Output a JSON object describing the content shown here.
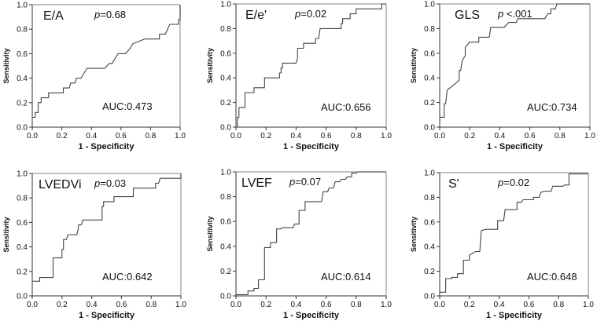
{
  "chart_data": [
    {
      "type": "line",
      "title": "E/A",
      "p_value": "p=0.68",
      "p_label": "p",
      "p_rest": "=0.68",
      "auc_label": "AUC:0.473",
      "xlabel": "1 - Specificity",
      "ylabel": "Sensitivity",
      "xlim": [
        0,
        1
      ],
      "ylim": [
        0,
        1
      ],
      "xticks": [
        "0.0",
        "0.2",
        "0.4",
        "0.6",
        "0.8",
        "1.0"
      ],
      "yticks": [
        "0.0",
        "0.2",
        "0.4",
        "0.6",
        "0.8",
        "1.0"
      ],
      "points": [
        [
          0,
          0
        ],
        [
          0,
          0.08
        ],
        [
          0.02,
          0.08
        ],
        [
          0.02,
          0.12
        ],
        [
          0.04,
          0.12
        ],
        [
          0.04,
          0.2
        ],
        [
          0.06,
          0.2
        ],
        [
          0.06,
          0.24
        ],
        [
          0.11,
          0.24
        ],
        [
          0.11,
          0.28
        ],
        [
          0.21,
          0.28
        ],
        [
          0.21,
          0.32
        ],
        [
          0.25,
          0.32
        ],
        [
          0.26,
          0.36
        ],
        [
          0.29,
          0.36
        ],
        [
          0.3,
          0.4
        ],
        [
          0.33,
          0.4
        ],
        [
          0.35,
          0.44
        ],
        [
          0.37,
          0.48
        ],
        [
          0.49,
          0.48
        ],
        [
          0.52,
          0.52
        ],
        [
          0.54,
          0.52
        ],
        [
          0.58,
          0.6
        ],
        [
          0.63,
          0.6
        ],
        [
          0.66,
          0.64
        ],
        [
          0.68,
          0.68
        ],
        [
          0.76,
          0.72
        ],
        [
          0.86,
          0.72
        ],
        [
          0.86,
          0.76
        ],
        [
          0.9,
          0.76
        ],
        [
          0.93,
          0.84
        ],
        [
          0.99,
          0.84
        ],
        [
          0.99,
          0.88
        ],
        [
          1,
          0.88
        ],
        [
          1,
          1
        ]
      ]
    },
    {
      "type": "line",
      "title": "E/e'",
      "p_value": "p=0.02",
      "p_label": "p",
      "p_rest": "=0.02",
      "auc_label": "AUC:0.656",
      "xlabel": "1 - Specificity",
      "ylabel": "Sensitivity",
      "xlim": [
        0,
        1
      ],
      "ylim": [
        0,
        1
      ],
      "xticks": [
        "0.0",
        "0.2",
        "0.4",
        "0.6",
        "0.8",
        "1.0"
      ],
      "yticks": [
        "0.0",
        "0.2",
        "0.4",
        "0.6",
        "0.8",
        "1.0"
      ],
      "points": [
        [
          0.01,
          0
        ],
        [
          0.01,
          0.08
        ],
        [
          0.02,
          0.08
        ],
        [
          0.02,
          0.16
        ],
        [
          0.06,
          0.16
        ],
        [
          0.06,
          0.28
        ],
        [
          0.12,
          0.28
        ],
        [
          0.12,
          0.32
        ],
        [
          0.19,
          0.32
        ],
        [
          0.19,
          0.4
        ],
        [
          0.29,
          0.4
        ],
        [
          0.29,
          0.44
        ],
        [
          0.3,
          0.44
        ],
        [
          0.3,
          0.48
        ],
        [
          0.31,
          0.48
        ],
        [
          0.31,
          0.52
        ],
        [
          0.4,
          0.52
        ],
        [
          0.41,
          0.56
        ],
        [
          0.41,
          0.64
        ],
        [
          0.45,
          0.64
        ],
        [
          0.45,
          0.68
        ],
        [
          0.53,
          0.68
        ],
        [
          0.53,
          0.72
        ],
        [
          0.55,
          0.72
        ],
        [
          0.56,
          0.8
        ],
        [
          0.7,
          0.8
        ],
        [
          0.7,
          0.84
        ],
        [
          0.71,
          0.84
        ],
        [
          0.71,
          0.88
        ],
        [
          0.76,
          0.88
        ],
        [
          0.76,
          0.92
        ],
        [
          0.8,
          0.92
        ],
        [
          0.8,
          0.96
        ],
        [
          0.97,
          0.96
        ],
        [
          0.97,
          1
        ],
        [
          1,
          1
        ]
      ]
    },
    {
      "type": "line",
      "title": "GLS",
      "p_value": "p <.001",
      "p_label": "p",
      "p_rest": " <.001",
      "auc_label": "AUC:0.734",
      "xlabel": "1 - Specificity",
      "ylabel": "Sensitivity",
      "xlim": [
        0,
        1
      ],
      "ylim": [
        0,
        1
      ],
      "xticks": [
        "0.0",
        "0.2",
        "0.4",
        "0.6",
        "0.8",
        "1.0"
      ],
      "yticks": [
        "0.0",
        "0.2",
        "0.4",
        "0.6",
        "0.8",
        "1.0"
      ],
      "points": [
        [
          0,
          0
        ],
        [
          0,
          0.08
        ],
        [
          0.03,
          0.08
        ],
        [
          0.03,
          0.19
        ],
        [
          0.04,
          0.19
        ],
        [
          0.05,
          0.3
        ],
        [
          0.07,
          0.32
        ],
        [
          0.13,
          0.38
        ],
        [
          0.13,
          0.46
        ],
        [
          0.14,
          0.46
        ],
        [
          0.15,
          0.54
        ],
        [
          0.17,
          0.58
        ],
        [
          0.17,
          0.65
        ],
        [
          0.2,
          0.69
        ],
        [
          0.26,
          0.69
        ],
        [
          0.26,
          0.73
        ],
        [
          0.33,
          0.73
        ],
        [
          0.34,
          0.81
        ],
        [
          0.43,
          0.81
        ],
        [
          0.46,
          0.85
        ],
        [
          0.51,
          0.85
        ],
        [
          0.52,
          0.88
        ],
        [
          0.7,
          0.88
        ],
        [
          0.72,
          0.92
        ],
        [
          0.74,
          0.92
        ],
        [
          0.74,
          0.96
        ],
        [
          0.77,
          0.96
        ],
        [
          0.78,
          1
        ],
        [
          1,
          1
        ]
      ]
    },
    {
      "type": "line",
      "title": "LVEDVi",
      "p_value": "p=0.03",
      "p_label": "p",
      "p_rest": "=0.03",
      "auc_label": "AUC:0.642",
      "xlabel": "1 - Specificity",
      "ylabel": "Sensitivity",
      "xlim": [
        0,
        1
      ],
      "ylim": [
        0,
        1
      ],
      "xticks": [
        "0.0",
        "0.2",
        "0.4",
        "0.6",
        "0.8",
        "1.0"
      ],
      "yticks": [
        "0.0",
        "0.2",
        "0.4",
        "0.6",
        "0.8",
        "1.0"
      ],
      "points": [
        [
          0,
          0
        ],
        [
          0,
          0.12
        ],
        [
          0.05,
          0.12
        ],
        [
          0.05,
          0.15
        ],
        [
          0.14,
          0.15
        ],
        [
          0.14,
          0.31
        ],
        [
          0.2,
          0.31
        ],
        [
          0.2,
          0.38
        ],
        [
          0.21,
          0.38
        ],
        [
          0.21,
          0.46
        ],
        [
          0.23,
          0.46
        ],
        [
          0.24,
          0.5
        ],
        [
          0.3,
          0.5
        ],
        [
          0.31,
          0.55
        ],
        [
          0.31,
          0.58
        ],
        [
          0.33,
          0.58
        ],
        [
          0.34,
          0.62
        ],
        [
          0.47,
          0.62
        ],
        [
          0.47,
          0.73
        ],
        [
          0.48,
          0.73
        ],
        [
          0.48,
          0.77
        ],
        [
          0.55,
          0.77
        ],
        [
          0.55,
          0.81
        ],
        [
          0.68,
          0.81
        ],
        [
          0.68,
          0.88
        ],
        [
          0.83,
          0.88
        ],
        [
          0.83,
          0.92
        ],
        [
          0.85,
          0.92
        ],
        [
          0.86,
          0.96
        ],
        [
          1,
          0.96
        ],
        [
          1,
          1
        ]
      ]
    },
    {
      "type": "line",
      "title": "LVEF",
      "p_value": "p=0.07",
      "p_label": "p",
      "p_rest": "=0.07",
      "auc_label": "AUC:0.614",
      "xlabel": "1 - Specificity",
      "ylabel": "Sensitivity",
      "xlim": [
        0,
        1
      ],
      "ylim": [
        0,
        1
      ],
      "xticks": [
        "0.0",
        "0.2",
        "0.4",
        "0.6",
        "0.8",
        "1.0"
      ],
      "yticks": [
        "0.0",
        "0.2",
        "0.4",
        "0.6",
        "0.8",
        "1.0"
      ],
      "points": [
        [
          0,
          0.01
        ],
        [
          0.08,
          0.01
        ],
        [
          0.08,
          0.04
        ],
        [
          0.12,
          0.04
        ],
        [
          0.12,
          0.06
        ],
        [
          0.15,
          0.06
        ],
        [
          0.15,
          0.13
        ],
        [
          0.19,
          0.13
        ],
        [
          0.19,
          0.39
        ],
        [
          0.23,
          0.39
        ],
        [
          0.23,
          0.43
        ],
        [
          0.27,
          0.43
        ],
        [
          0.27,
          0.54
        ],
        [
          0.3,
          0.54
        ],
        [
          0.31,
          0.55
        ],
        [
          0.38,
          0.55
        ],
        [
          0.39,
          0.58
        ],
        [
          0.42,
          0.58
        ],
        [
          0.42,
          0.69
        ],
        [
          0.46,
          0.69
        ],
        [
          0.46,
          0.76
        ],
        [
          0.57,
          0.76
        ],
        [
          0.58,
          0.84
        ],
        [
          0.61,
          0.84
        ],
        [
          0.62,
          0.87
        ],
        [
          0.65,
          0.87
        ],
        [
          0.66,
          0.92
        ],
        [
          0.69,
          0.92
        ],
        [
          0.7,
          0.94
        ],
        [
          0.73,
          0.94
        ],
        [
          0.74,
          0.96
        ],
        [
          0.77,
          0.96
        ],
        [
          0.77,
          0.99
        ],
        [
          0.8,
          0.99
        ],
        [
          0.81,
          1
        ],
        [
          1,
          1
        ]
      ]
    },
    {
      "type": "line",
      "title": "S'",
      "p_value": "p=0.02",
      "p_label": "p",
      "p_rest": "=0.02",
      "auc_label": "AUC:0.648",
      "xlabel": "1 - Specificity",
      "ylabel": "Sensitivity",
      "xlim": [
        0,
        1
      ],
      "ylim": [
        0,
        1
      ],
      "xticks": [
        "0.0",
        "0.2",
        "0.4",
        "0.6",
        "0.8",
        "1.0"
      ],
      "yticks": [
        "0.0",
        "0.2",
        "0.4",
        "0.6",
        "0.8",
        "1.0"
      ],
      "points": [
        [
          0,
          0
        ],
        [
          0,
          0.03
        ],
        [
          0.04,
          0.03
        ],
        [
          0.04,
          0.14
        ],
        [
          0.08,
          0.14
        ],
        [
          0.08,
          0.15
        ],
        [
          0.12,
          0.15
        ],
        [
          0.12,
          0.18
        ],
        [
          0.16,
          0.18
        ],
        [
          0.16,
          0.29
        ],
        [
          0.2,
          0.29
        ],
        [
          0.2,
          0.33
        ],
        [
          0.24,
          0.36
        ],
        [
          0.27,
          0.36
        ],
        [
          0.28,
          0.53
        ],
        [
          0.31,
          0.54
        ],
        [
          0.39,
          0.54
        ],
        [
          0.39,
          0.61
        ],
        [
          0.43,
          0.61
        ],
        [
          0.44,
          0.7
        ],
        [
          0.52,
          0.7
        ],
        [
          0.52,
          0.76
        ],
        [
          0.55,
          0.76
        ],
        [
          0.56,
          0.78
        ],
        [
          0.63,
          0.78
        ],
        [
          0.63,
          0.8
        ],
        [
          0.67,
          0.8
        ],
        [
          0.68,
          0.84
        ],
        [
          0.71,
          0.85
        ],
        [
          0.75,
          0.85
        ],
        [
          0.76,
          0.89
        ],
        [
          0.83,
          0.89
        ],
        [
          0.84,
          0.9
        ],
        [
          0.87,
          0.9
        ],
        [
          0.87,
          0.99
        ],
        [
          1,
          0.99
        ]
      ]
    }
  ]
}
